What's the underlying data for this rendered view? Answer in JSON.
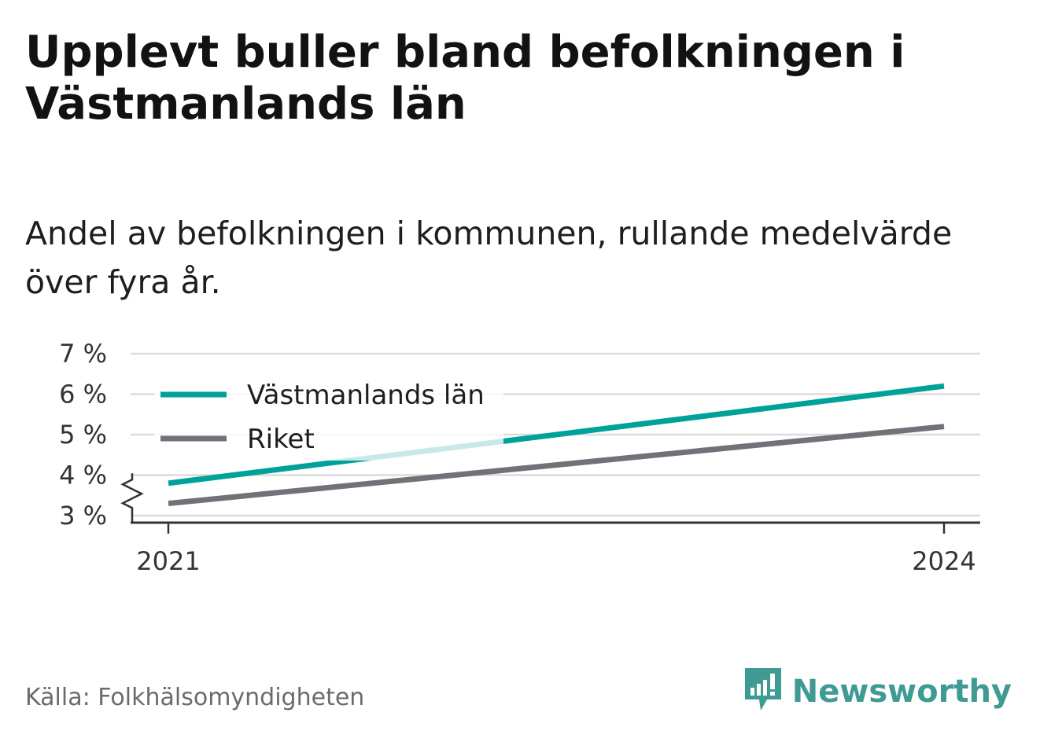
{
  "title": "Upplevt buller bland befolkningen i Västmanlands län",
  "subtitle": "Andel av befolkningen i kommunen, rullande medelvärde över fyra år.",
  "source": "Källa: Folkhälsomyndigheten",
  "brand": {
    "name": "Newsworthy",
    "logo_icon": "newsworthy-logo-icon"
  },
  "colors": {
    "series_1": "#00a19a",
    "series_2": "#727178",
    "grid": "#dcdcdc",
    "axis": "#333333"
  },
  "chart_data": {
    "type": "line",
    "x": [
      "2021",
      "2024"
    ],
    "x_tick_labels": [
      "2021",
      "2024"
    ],
    "y_tick_labels": [
      "7 %",
      "6 %",
      "5 %",
      "4 %",
      "3 %"
    ],
    "y_ticks": [
      7,
      6,
      5,
      4,
      3
    ],
    "ylim": [
      3,
      7
    ],
    "y_axis_break": true,
    "grid": true,
    "legend_position": "top-left",
    "series": [
      {
        "name": "Västmanlands län",
        "values": [
          3.8,
          6.2
        ],
        "color": "#00a19a"
      },
      {
        "name": "Riket",
        "values": [
          3.3,
          5.2
        ],
        "color": "#727178"
      }
    ]
  }
}
